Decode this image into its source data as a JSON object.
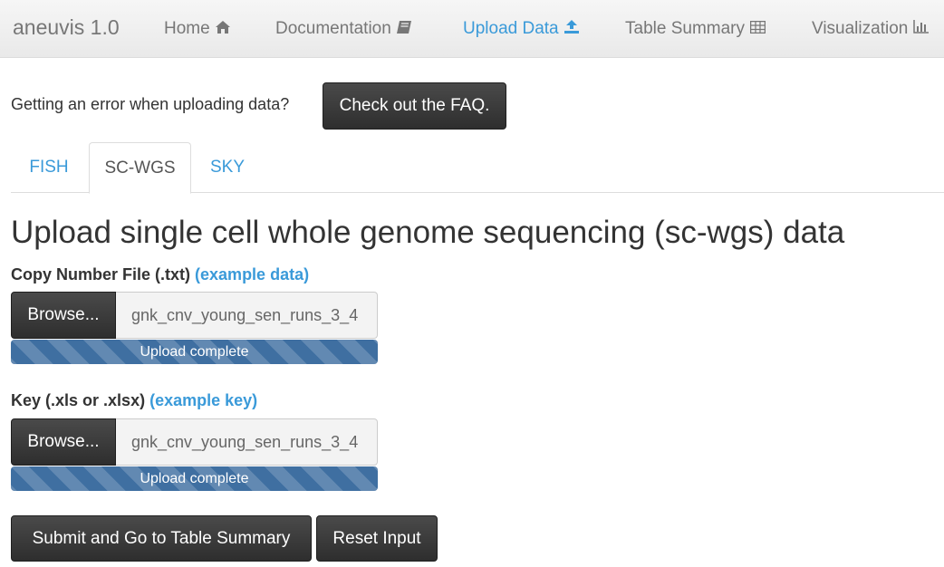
{
  "navbar": {
    "brand": "aneuvis 1.0",
    "items": [
      {
        "label": "Home",
        "icon": "home-icon"
      },
      {
        "label": "Documentation",
        "icon": "book-icon"
      },
      {
        "label": "Upload Data",
        "icon": "upload-icon",
        "active": true
      },
      {
        "label": "Table Summary",
        "icon": "table-icon"
      },
      {
        "label": "Visualization",
        "icon": "bar-chart-icon"
      }
    ]
  },
  "faq": {
    "text": "Getting an error when uploading data?",
    "button_label": "Check out the FAQ."
  },
  "tabs": [
    {
      "label": "FISH"
    },
    {
      "label": "SC-WGS",
      "active": true
    },
    {
      "label": "SKY"
    }
  ],
  "main": {
    "title": "Upload single cell whole genome sequencing (sc-wgs) data",
    "copy_number": {
      "label": "Copy Number File (.txt)",
      "link": "(example data)",
      "browse_label": "Browse...",
      "file_name": "gnk_cnv_young_sen_runs_3_4",
      "progress_text": "Upload complete",
      "progress": 1.0
    },
    "key": {
      "label": "Key (.xls or .xlsx)",
      "link": "(example key)",
      "browse_label": "Browse...",
      "file_name": "gnk_cnv_young_sen_runs_3_4",
      "progress_text": "Upload complete",
      "progress": 1.0
    },
    "submit_label": "Submit and Go to Table Summary",
    "reset_label": "Reset Input"
  },
  "colors": {
    "accent": "#3a9ad9",
    "dark_button": "#333333",
    "progress": "#3f6fa1"
  }
}
